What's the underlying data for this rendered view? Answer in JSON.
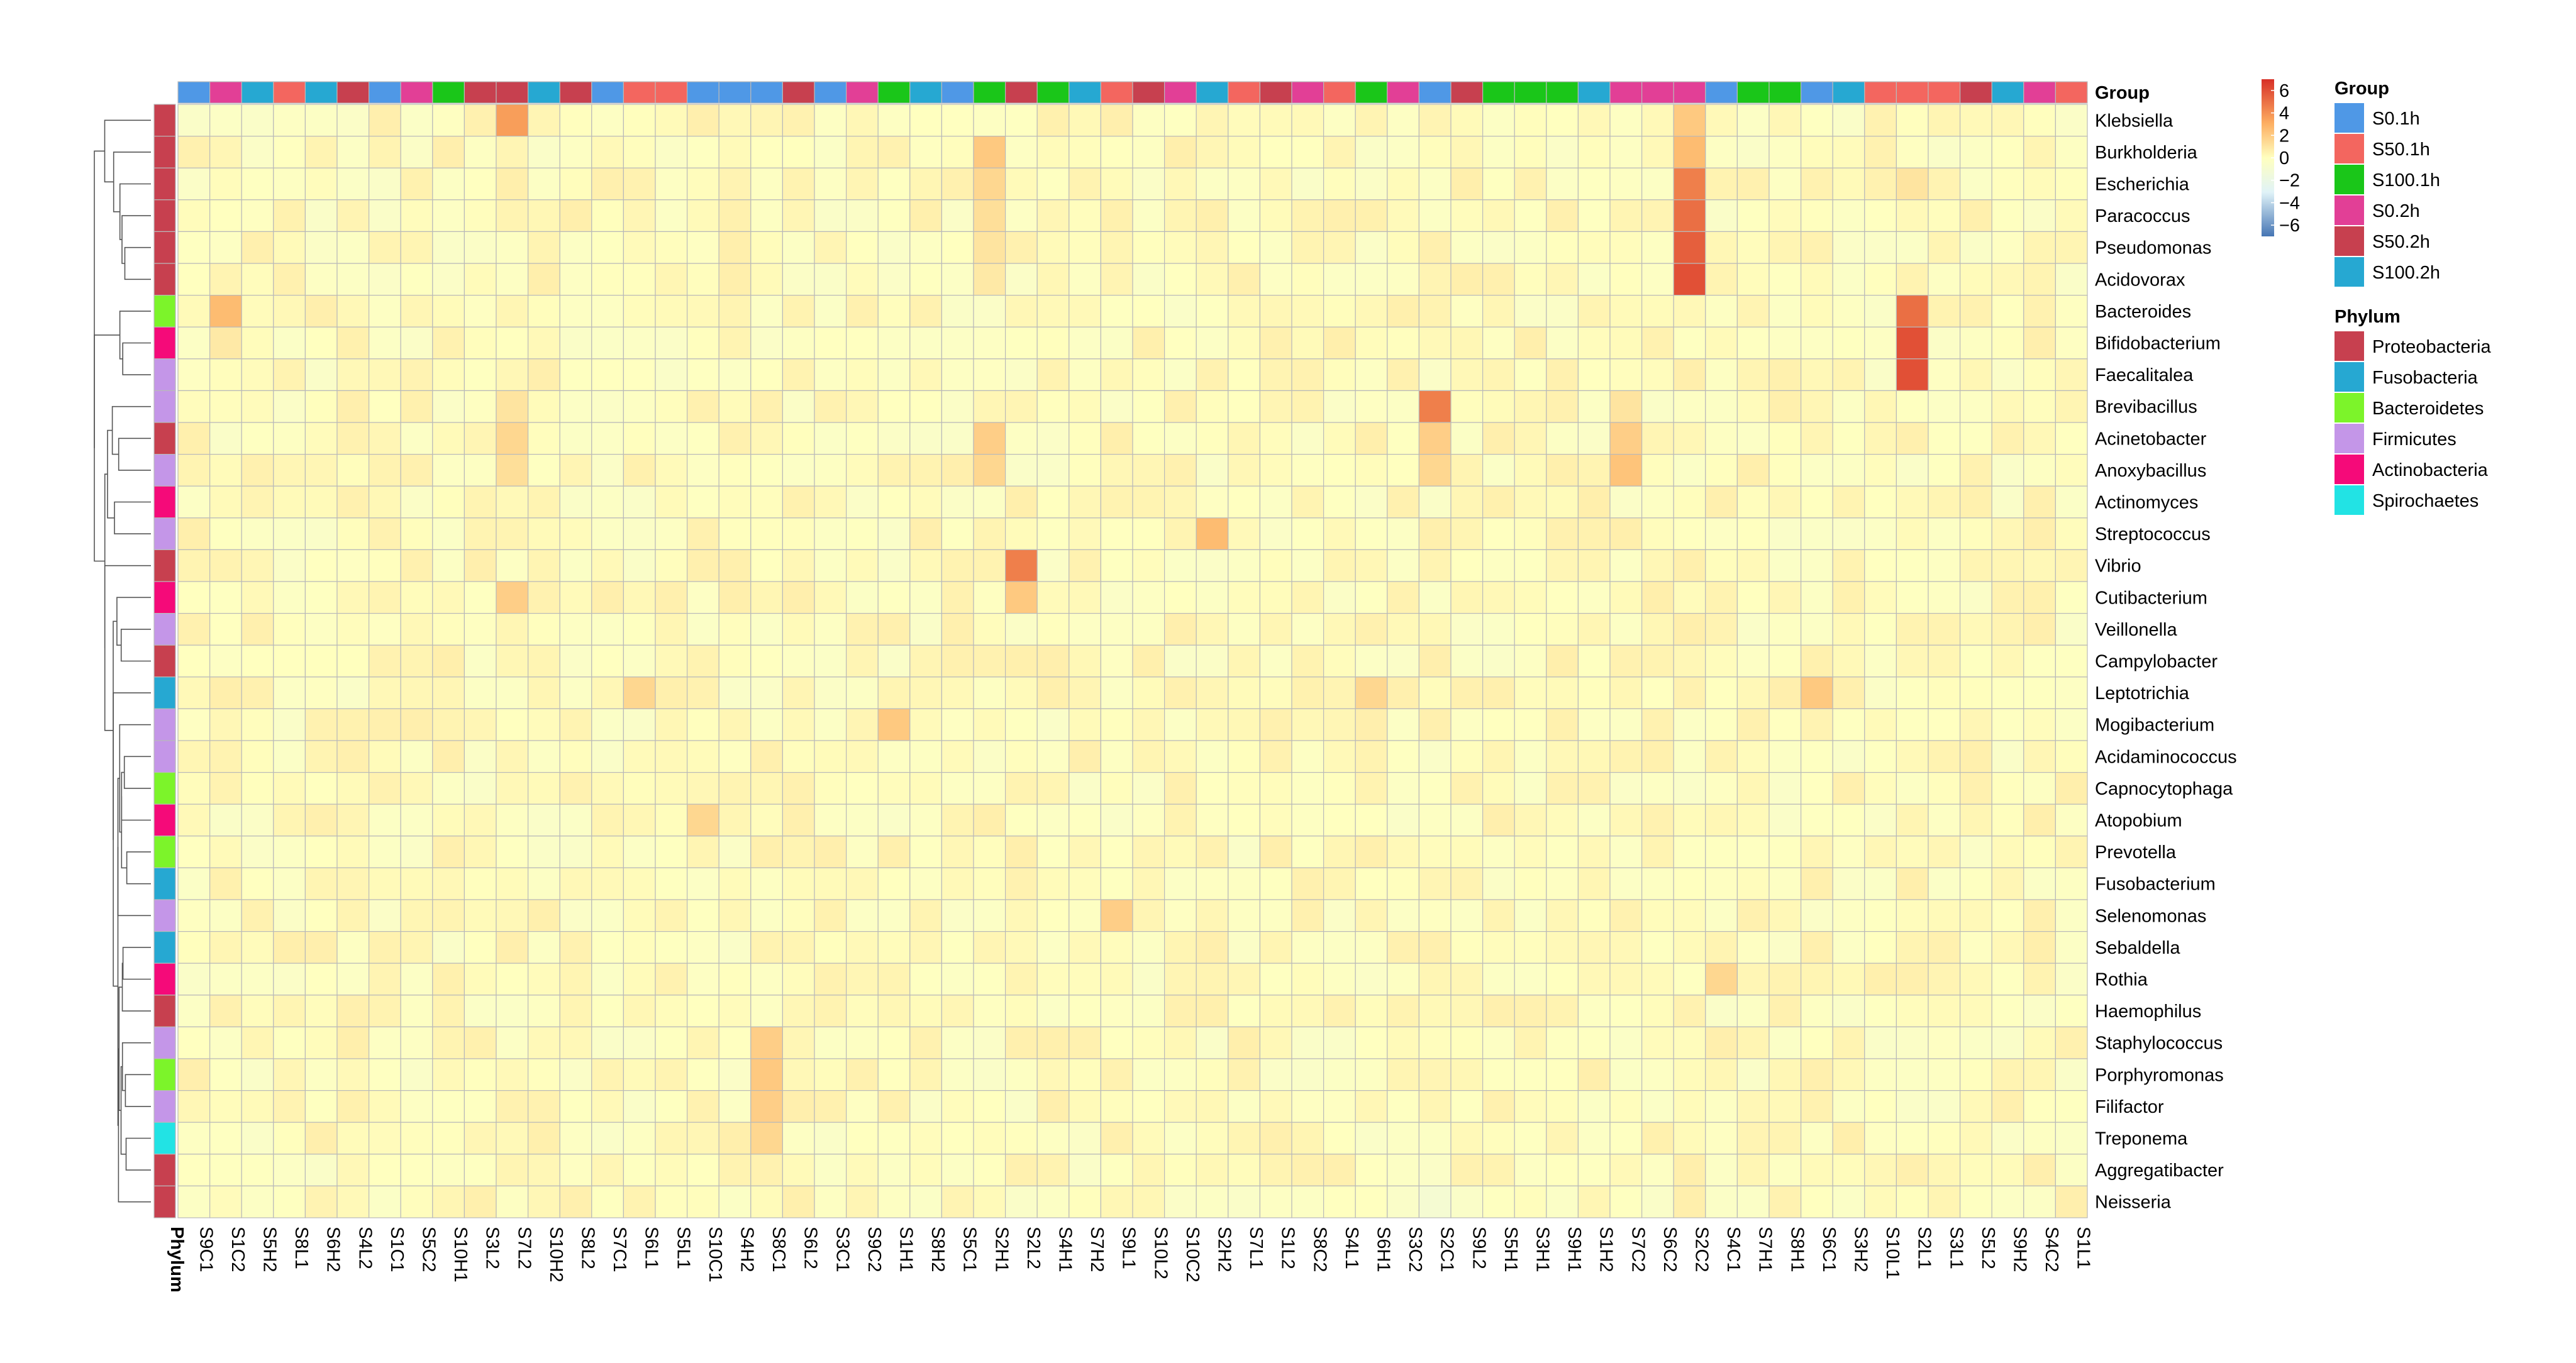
{
  "chart_data": {
    "type": "heatmap",
    "columns": [
      "S9C1",
      "S1C2",
      "S5H2",
      "S8L1",
      "S6H2",
      "S4L2",
      "S1C1",
      "S5C2",
      "S10H1",
      "S3L2",
      "S7L2",
      "S10H2",
      "S8L2",
      "S7C1",
      "S6L1",
      "S5L1",
      "S10C1",
      "S4H2",
      "S8C1",
      "S6L2",
      "S3C1",
      "S9C2",
      "S1H1",
      "S8H2",
      "S5C1",
      "S2H1",
      "S2L2",
      "S4H1",
      "S7H2",
      "S9L1",
      "S10L2",
      "S10C2",
      "S2H2",
      "S7L1",
      "S1L2",
      "S8C2",
      "S4L1",
      "S6H1",
      "S3C2",
      "S2C1",
      "S9L2",
      "S5H1",
      "S3H1",
      "S9H1",
      "S1H2",
      "S7C2",
      "S6C2",
      "S2C2",
      "S4C1",
      "S7H1",
      "S8H1",
      "S6C1",
      "S3H2",
      "S10L1",
      "S2L1",
      "S3L1",
      "S5L2",
      "S9H2",
      "S4C2",
      "S1L1"
    ],
    "rows": [
      "Klebsiella",
      "Burkholderia",
      "Escherichia",
      "Paracoccus",
      "Pseudomonas",
      "Acidovorax",
      "Bacteroides",
      "Bifidobacterium",
      "Faecalitalea",
      "Brevibacillus",
      "Acinetobacter",
      "Anoxybacillus",
      "Actinomyces",
      "Streptococcus",
      "Vibrio",
      "Cutibacterium",
      "Veillonella",
      "Campylobacter",
      "Leptotrichia",
      "Mogibacterium",
      "Acidaminococcus",
      "Capnocytophaga",
      "Atopobium",
      "Prevotella",
      "Fusobacterium",
      "Selenomonas",
      "Sebaldella",
      "Rothia",
      "Haemophilus",
      "Staphylococcus",
      "Porphyromonas",
      "Filifactor",
      "Treponema",
      "Aggregatibacter",
      "Neisseria"
    ],
    "column_groups": [
      "S0.1h",
      "S0.2h",
      "S100.2h",
      "S50.1h",
      "S100.2h",
      "S50.2h",
      "S0.1h",
      "S0.2h",
      "S100.1h",
      "S50.2h",
      "S50.2h",
      "S100.2h",
      "S50.2h",
      "S0.1h",
      "S50.1h",
      "S50.1h",
      "S0.1h",
      "S0.1h",
      "S0.1h",
      "S50.2h",
      "S0.1h",
      "S0.2h",
      "S100.1h",
      "S100.2h",
      "S0.1h",
      "S100.1h",
      "S50.2h",
      "S100.1h",
      "S100.2h",
      "S50.1h",
      "S50.2h",
      "S0.2h",
      "S100.2h",
      "S50.1h",
      "S50.2h",
      "S0.2h",
      "S50.1h",
      "S100.1h",
      "S0.2h",
      "S0.1h",
      "S50.2h",
      "S100.1h",
      "S100.1h",
      "S100.1h",
      "S100.2h",
      "S0.2h",
      "S0.2h",
      "S0.2h",
      "S0.1h",
      "S100.1h",
      "S100.1h",
      "S0.1h",
      "S100.2h",
      "S50.1h",
      "S50.1h",
      "S50.1h",
      "S50.2h",
      "S100.2h",
      "S0.2h",
      "S50.1h"
    ],
    "row_phylum": [
      "Proteobacteria",
      "Proteobacteria",
      "Proteobacteria",
      "Proteobacteria",
      "Proteobacteria",
      "Proteobacteria",
      "Bacteroidetes",
      "Actinobacteria",
      "Firmicutes",
      "Firmicutes",
      "Proteobacteria",
      "Firmicutes",
      "Actinobacteria",
      "Firmicutes",
      "Proteobacteria",
      "Actinobacteria",
      "Firmicutes",
      "Proteobacteria",
      "Fusobacteria",
      "Firmicutes",
      "Firmicutes",
      "Bacteroidetes",
      "Actinobacteria",
      "Bacteroidetes",
      "Fusobacteria",
      "Firmicutes",
      "Fusobacteria",
      "Actinobacteria",
      "Proteobacteria",
      "Firmicutes",
      "Bacteroidetes",
      "Firmicutes",
      "Spirochaetes",
      "Proteobacteria",
      "Proteobacteria"
    ],
    "hotspots": [
      {
        "row": "Klebsiella",
        "column": "S7L2",
        "value": 3.5
      },
      {
        "row": "Klebsiella",
        "column": "S2C2",
        "value": 2
      },
      {
        "row": "Burkholderia",
        "column": "S2H1",
        "value": 2
      },
      {
        "row": "Burkholderia",
        "column": "S2C2",
        "value": 2.5
      },
      {
        "row": "Escherichia",
        "column": "S2C2",
        "value": 4.5
      },
      {
        "row": "Escherichia",
        "column": "S2H1",
        "value": 1.5
      },
      {
        "row": "Escherichia",
        "column": "S2L1",
        "value": 1
      },
      {
        "row": "Paracoccus",
        "column": "S2C2",
        "value": 5
      },
      {
        "row": "Paracoccus",
        "column": "S2H1",
        "value": 1.2
      },
      {
        "row": "Pseudomonas",
        "column": "S2C2",
        "value": 5.5
      },
      {
        "row": "Pseudomonas",
        "column": "S2H1",
        "value": 1
      },
      {
        "row": "Acidovorax",
        "column": "S2C2",
        "value": 6
      },
      {
        "row": "Acidovorax",
        "column": "S2H1",
        "value": 0.8
      },
      {
        "row": "Bacteroides",
        "column": "S1C2",
        "value": 2.5
      },
      {
        "row": "Bacteroides",
        "column": "S2L1",
        "value": 5
      },
      {
        "row": "Bifidobacterium",
        "column": "S2L1",
        "value": 6
      },
      {
        "row": "Bifidobacterium",
        "column": "S1C2",
        "value": 0.8
      },
      {
        "row": "Faecalitalea",
        "column": "S2L1",
        "value": 6
      },
      {
        "row": "Brevibacillus",
        "column": "S2C1",
        "value": 4.5
      },
      {
        "row": "Brevibacillus",
        "column": "S7C2",
        "value": 1
      },
      {
        "row": "Brevibacillus",
        "column": "S7L2",
        "value": 1
      },
      {
        "row": "Acinetobacter",
        "column": "S2H1",
        "value": 1.8
      },
      {
        "row": "Acinetobacter",
        "column": "S2C1",
        "value": 1.8
      },
      {
        "row": "Acinetobacter",
        "column": "S7C2",
        "value": 1.8
      },
      {
        "row": "Acinetobacter",
        "column": "S7L2",
        "value": 1.5
      },
      {
        "row": "Anoxybacillus",
        "column": "S7C2",
        "value": 2.2
      },
      {
        "row": "Anoxybacillus",
        "column": "S2C1",
        "value": 1.5
      },
      {
        "row": "Anoxybacillus",
        "column": "S2H1",
        "value": 1.5
      },
      {
        "row": "Anoxybacillus",
        "column": "S7L2",
        "value": 1.2
      },
      {
        "row": "Streptococcus",
        "column": "S2H2",
        "value": 2.5
      },
      {
        "row": "Vibrio",
        "column": "S2L2",
        "value": 4.5
      },
      {
        "row": "Cutibacterium",
        "column": "S2L2",
        "value": 2
      },
      {
        "row": "Cutibacterium",
        "column": "S7L2",
        "value": 1.8
      },
      {
        "row": "Leptotrichia",
        "column": "S6L1",
        "value": 1.5
      },
      {
        "row": "Leptotrichia",
        "column": "S6H1",
        "value": 1.5
      },
      {
        "row": "Leptotrichia",
        "column": "S6C1",
        "value": 2
      },
      {
        "row": "Mogibacterium",
        "column": "S1H1",
        "value": 2
      },
      {
        "row": "Atopobium",
        "column": "S10C1",
        "value": 1.5
      },
      {
        "row": "Selenomonas",
        "column": "S9L1",
        "value": 1.8
      },
      {
        "row": "Rothia",
        "column": "S4C1",
        "value": 1.5
      },
      {
        "row": "Staphylococcus",
        "column": "S8C1",
        "value": 1.8
      },
      {
        "row": "Porphyromonas",
        "column": "S8C1",
        "value": 2
      },
      {
        "row": "Filifactor",
        "column": "S8C1",
        "value": 1.8
      },
      {
        "row": "Treponema",
        "column": "S8C1",
        "value": 1.5
      },
      {
        "row": "Neisseria",
        "column": "S2C1",
        "value": -1
      }
    ],
    "default_value": 0,
    "colorbar": {
      "ticks": [
        6,
        4,
        2,
        0,
        -2,
        -4,
        -6
      ],
      "range": [
        -7,
        7
      ],
      "stops": [
        "#4575b4",
        "#e0f3f8",
        "#ffffbf",
        "#fdae61",
        "#d73027"
      ]
    },
    "legend_group": {
      "title": "Group",
      "items": [
        {
          "label": "S0.1h",
          "color": "#4f98e6"
        },
        {
          "label": "S50.1h",
          "color": "#f3665f"
        },
        {
          "label": "S100.1h",
          "color": "#1ac619"
        },
        {
          "label": "S0.2h",
          "color": "#e23f96"
        },
        {
          "label": "S50.2h",
          "color": "#c7404f"
        },
        {
          "label": "S100.2h",
          "color": "#26a8d2"
        }
      ]
    },
    "legend_phylum": {
      "title": "Phylum",
      "items": [
        {
          "label": "Proteobacteria",
          "color": "#c7404f"
        },
        {
          "label": "Fusobacteria",
          "color": "#26a8d2"
        },
        {
          "label": "Bacteroidetes",
          "color": "#7cf42a"
        },
        {
          "label": "Firmicutes",
          "color": "#c496e8"
        },
        {
          "label": "Actinobacteria",
          "color": "#f50a79"
        },
        {
          "label": "Spirochaetes",
          "color": "#22e3e4"
        }
      ]
    },
    "col_annotation_label": "Group",
    "row_annotation_label": "Phylum"
  }
}
